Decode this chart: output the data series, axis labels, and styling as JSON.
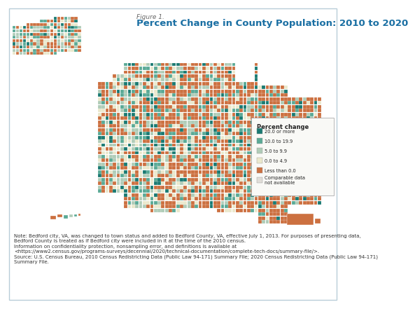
{
  "figure_label": "Figure 1.",
  "title": "Percent Change in County Population: 2010 to 2020",
  "title_color": "#1a6fa3",
  "title_fontsize": 9.5,
  "figure_label_fontsize": 6.5,
  "background_color": "#ffffff",
  "border_color": "#b8cdd8",
  "legend_title": "Percent change",
  "legend_items": [
    {
      "label": "20.0 or more",
      "color": "#1a7a72"
    },
    {
      "label": "10.0 to 19.9",
      "color": "#5aaa96"
    },
    {
      "label": "5.0 to 9.9",
      "color": "#b0ccb8"
    },
    {
      "label": "0.0 to 4.9",
      "color": "#eae8cc"
    },
    {
      "label": "Less than 0.0",
      "color": "#cc7040"
    },
    {
      "label": "Comparable data\nnot available",
      "color": "#e0ddd8"
    }
  ],
  "note_lines": [
    "Note: Bedford city, VA, was changed to town status and added to Bedford County, VA, effective July 1, 2013. For purposes of presenting data,",
    "Bedford County is treated as if Bedford city were included in it at the time of the 2010 census.",
    "Information on confidentiality protection, nonsampling error, and definitions is available at",
    "<https://www2.census.gov/programs-surveys/decennial/2020/technical-documentation/complete-tech-docs/summary-file/>.",
    "Source: U.S. Census Bureau, 2010 Census Redistricting Data (Public Law 94-171) Summary File; 2020 Census Redistricting Data (Public Law 94-171)",
    "Summary File."
  ],
  "note_fontsize": 5.0
}
